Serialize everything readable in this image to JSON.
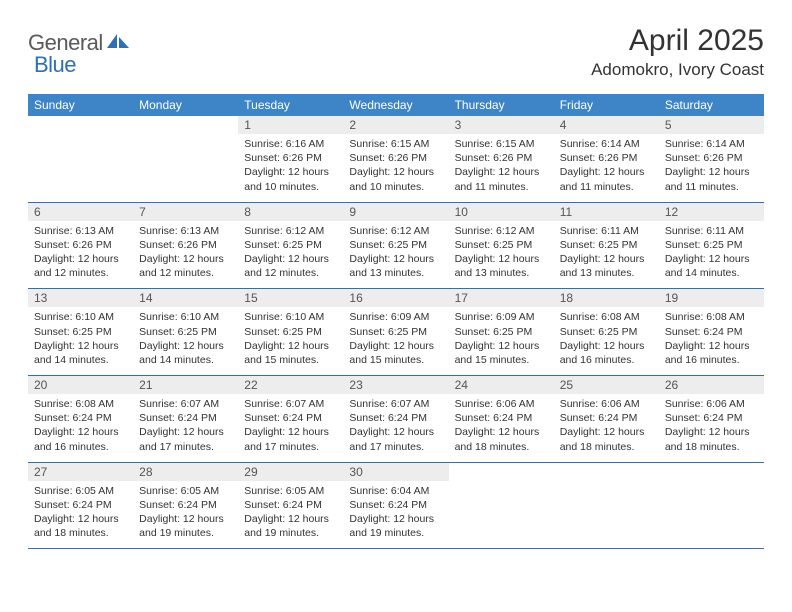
{
  "logo": {
    "text1": "General",
    "text2": "Blue"
  },
  "title": "April 2025",
  "location": "Adomokro, Ivory Coast",
  "colors": {
    "header_bg": "#3d85c6",
    "header_text": "#ffffff",
    "daynum_bg": "#ededed",
    "rule": "#2f6fb3",
    "body_text": "#333333",
    "logo_gray": "#5a5a5a",
    "logo_blue": "#2f6fb3",
    "page_bg": "#ffffff"
  },
  "typography": {
    "title_pt": 30,
    "location_pt": 17,
    "header_pt": 12,
    "daynum_pt": 12,
    "cell_pt": 10.5
  },
  "columns": [
    "Sunday",
    "Monday",
    "Tuesday",
    "Wednesday",
    "Thursday",
    "Friday",
    "Saturday"
  ],
  "weeks": [
    [
      null,
      null,
      {
        "n": "1",
        "sr": "Sunrise: 6:16 AM",
        "ss": "Sunset: 6:26 PM",
        "d1": "Daylight: 12 hours",
        "d2": "and 10 minutes."
      },
      {
        "n": "2",
        "sr": "Sunrise: 6:15 AM",
        "ss": "Sunset: 6:26 PM",
        "d1": "Daylight: 12 hours",
        "d2": "and 10 minutes."
      },
      {
        "n": "3",
        "sr": "Sunrise: 6:15 AM",
        "ss": "Sunset: 6:26 PM",
        "d1": "Daylight: 12 hours",
        "d2": "and 11 minutes."
      },
      {
        "n": "4",
        "sr": "Sunrise: 6:14 AM",
        "ss": "Sunset: 6:26 PM",
        "d1": "Daylight: 12 hours",
        "d2": "and 11 minutes."
      },
      {
        "n": "5",
        "sr": "Sunrise: 6:14 AM",
        "ss": "Sunset: 6:26 PM",
        "d1": "Daylight: 12 hours",
        "d2": "and 11 minutes."
      }
    ],
    [
      {
        "n": "6",
        "sr": "Sunrise: 6:13 AM",
        "ss": "Sunset: 6:26 PM",
        "d1": "Daylight: 12 hours",
        "d2": "and 12 minutes."
      },
      {
        "n": "7",
        "sr": "Sunrise: 6:13 AM",
        "ss": "Sunset: 6:26 PM",
        "d1": "Daylight: 12 hours",
        "d2": "and 12 minutes."
      },
      {
        "n": "8",
        "sr": "Sunrise: 6:12 AM",
        "ss": "Sunset: 6:25 PM",
        "d1": "Daylight: 12 hours",
        "d2": "and 12 minutes."
      },
      {
        "n": "9",
        "sr": "Sunrise: 6:12 AM",
        "ss": "Sunset: 6:25 PM",
        "d1": "Daylight: 12 hours",
        "d2": "and 13 minutes."
      },
      {
        "n": "10",
        "sr": "Sunrise: 6:12 AM",
        "ss": "Sunset: 6:25 PM",
        "d1": "Daylight: 12 hours",
        "d2": "and 13 minutes."
      },
      {
        "n": "11",
        "sr": "Sunrise: 6:11 AM",
        "ss": "Sunset: 6:25 PM",
        "d1": "Daylight: 12 hours",
        "d2": "and 13 minutes."
      },
      {
        "n": "12",
        "sr": "Sunrise: 6:11 AM",
        "ss": "Sunset: 6:25 PM",
        "d1": "Daylight: 12 hours",
        "d2": "and 14 minutes."
      }
    ],
    [
      {
        "n": "13",
        "sr": "Sunrise: 6:10 AM",
        "ss": "Sunset: 6:25 PM",
        "d1": "Daylight: 12 hours",
        "d2": "and 14 minutes."
      },
      {
        "n": "14",
        "sr": "Sunrise: 6:10 AM",
        "ss": "Sunset: 6:25 PM",
        "d1": "Daylight: 12 hours",
        "d2": "and 14 minutes."
      },
      {
        "n": "15",
        "sr": "Sunrise: 6:10 AM",
        "ss": "Sunset: 6:25 PM",
        "d1": "Daylight: 12 hours",
        "d2": "and 15 minutes."
      },
      {
        "n": "16",
        "sr": "Sunrise: 6:09 AM",
        "ss": "Sunset: 6:25 PM",
        "d1": "Daylight: 12 hours",
        "d2": "and 15 minutes."
      },
      {
        "n": "17",
        "sr": "Sunrise: 6:09 AM",
        "ss": "Sunset: 6:25 PM",
        "d1": "Daylight: 12 hours",
        "d2": "and 15 minutes."
      },
      {
        "n": "18",
        "sr": "Sunrise: 6:08 AM",
        "ss": "Sunset: 6:25 PM",
        "d1": "Daylight: 12 hours",
        "d2": "and 16 minutes."
      },
      {
        "n": "19",
        "sr": "Sunrise: 6:08 AM",
        "ss": "Sunset: 6:24 PM",
        "d1": "Daylight: 12 hours",
        "d2": "and 16 minutes."
      }
    ],
    [
      {
        "n": "20",
        "sr": "Sunrise: 6:08 AM",
        "ss": "Sunset: 6:24 PM",
        "d1": "Daylight: 12 hours",
        "d2": "and 16 minutes."
      },
      {
        "n": "21",
        "sr": "Sunrise: 6:07 AM",
        "ss": "Sunset: 6:24 PM",
        "d1": "Daylight: 12 hours",
        "d2": "and 17 minutes."
      },
      {
        "n": "22",
        "sr": "Sunrise: 6:07 AM",
        "ss": "Sunset: 6:24 PM",
        "d1": "Daylight: 12 hours",
        "d2": "and 17 minutes."
      },
      {
        "n": "23",
        "sr": "Sunrise: 6:07 AM",
        "ss": "Sunset: 6:24 PM",
        "d1": "Daylight: 12 hours",
        "d2": "and 17 minutes."
      },
      {
        "n": "24",
        "sr": "Sunrise: 6:06 AM",
        "ss": "Sunset: 6:24 PM",
        "d1": "Daylight: 12 hours",
        "d2": "and 18 minutes."
      },
      {
        "n": "25",
        "sr": "Sunrise: 6:06 AM",
        "ss": "Sunset: 6:24 PM",
        "d1": "Daylight: 12 hours",
        "d2": "and 18 minutes."
      },
      {
        "n": "26",
        "sr": "Sunrise: 6:06 AM",
        "ss": "Sunset: 6:24 PM",
        "d1": "Daylight: 12 hours",
        "d2": "and 18 minutes."
      }
    ],
    [
      {
        "n": "27",
        "sr": "Sunrise: 6:05 AM",
        "ss": "Sunset: 6:24 PM",
        "d1": "Daylight: 12 hours",
        "d2": "and 18 minutes."
      },
      {
        "n": "28",
        "sr": "Sunrise: 6:05 AM",
        "ss": "Sunset: 6:24 PM",
        "d1": "Daylight: 12 hours",
        "d2": "and 19 minutes."
      },
      {
        "n": "29",
        "sr": "Sunrise: 6:05 AM",
        "ss": "Sunset: 6:24 PM",
        "d1": "Daylight: 12 hours",
        "d2": "and 19 minutes."
      },
      {
        "n": "30",
        "sr": "Sunrise: 6:04 AM",
        "ss": "Sunset: 6:24 PM",
        "d1": "Daylight: 12 hours",
        "d2": "and 19 minutes."
      },
      null,
      null,
      null
    ]
  ]
}
